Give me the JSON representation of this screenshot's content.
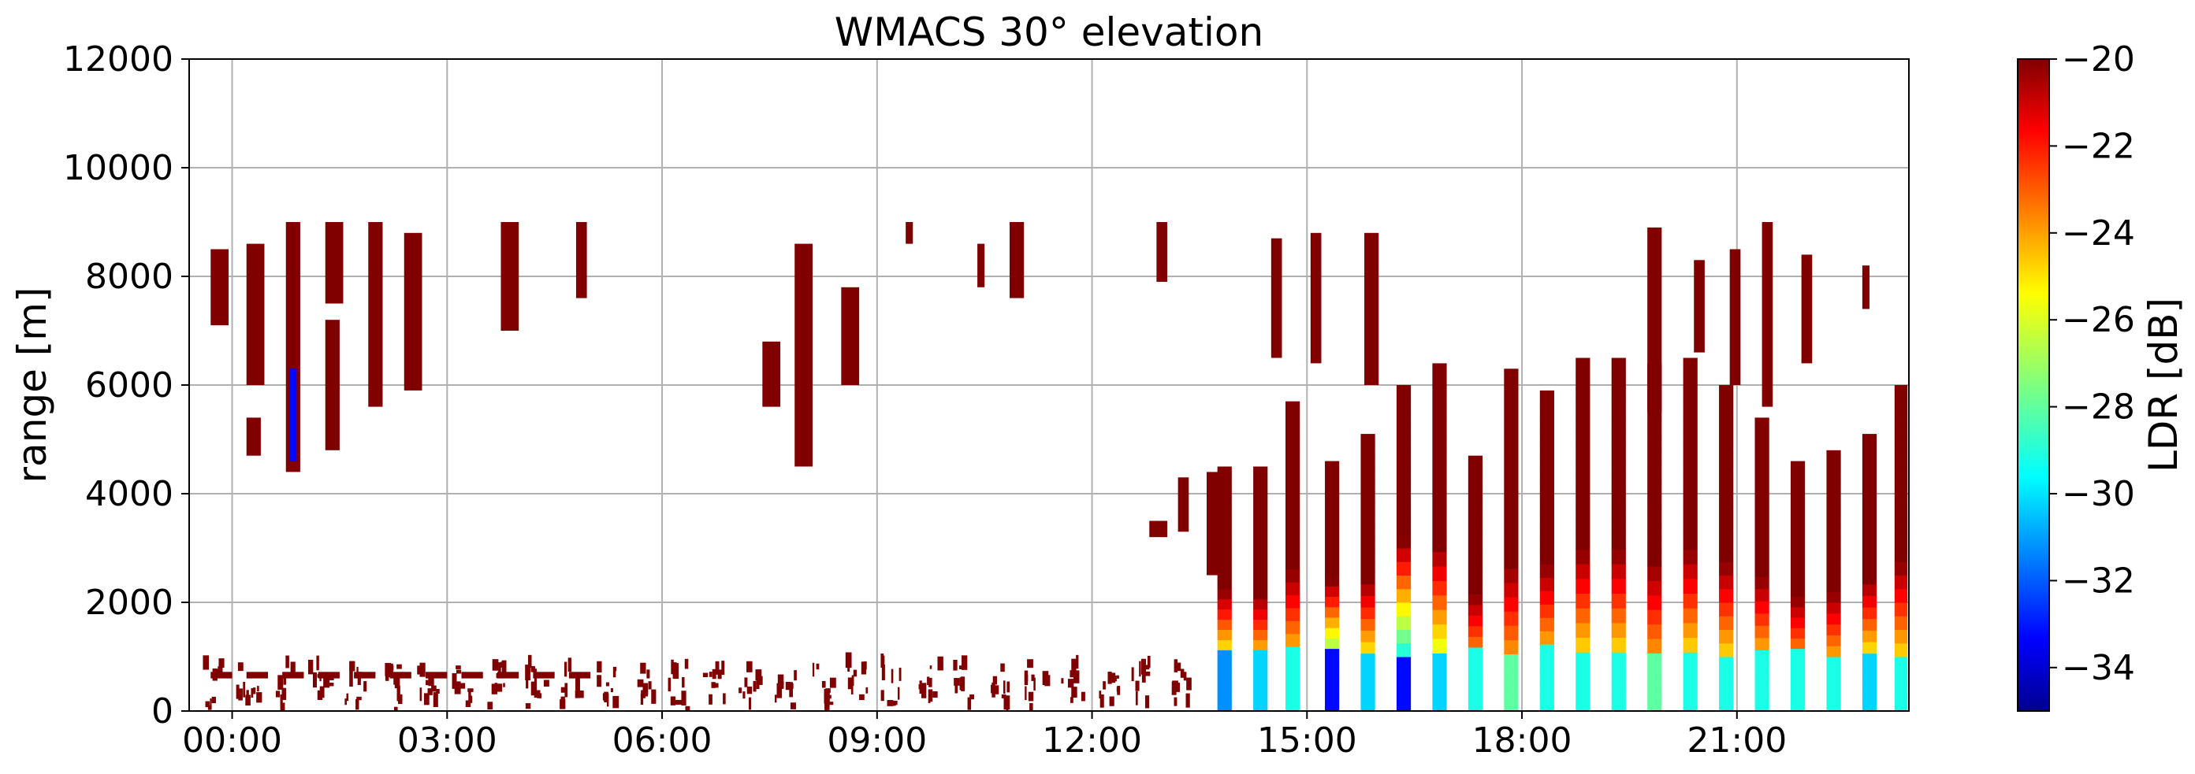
{
  "chart_data": {
    "type": "heatmap",
    "title": "WMACS 30° elevation",
    "xlabel": "",
    "ylabel": "range [m]",
    "xlim_hours": [
      -0.6,
      23.4
    ],
    "ylim": [
      0,
      12000
    ],
    "x_ticks": [
      {
        "hour": 0,
        "label": "00:00"
      },
      {
        "hour": 3,
        "label": "03:00"
      },
      {
        "hour": 6,
        "label": "06:00"
      },
      {
        "hour": 9,
        "label": "09:00"
      },
      {
        "hour": 12,
        "label": "12:00"
      },
      {
        "hour": 15,
        "label": "15:00"
      },
      {
        "hour": 18,
        "label": "18:00"
      },
      {
        "hour": 21,
        "label": "21:00"
      }
    ],
    "y_ticks": [
      {
        "value": 0,
        "label": "0"
      },
      {
        "value": 2000,
        "label": "2000"
      },
      {
        "value": 4000,
        "label": "4000"
      },
      {
        "value": 6000,
        "label": "6000"
      },
      {
        "value": 8000,
        "label": "8000"
      },
      {
        "value": 10000,
        "label": "10000"
      },
      {
        "value": 12000,
        "label": "12000"
      }
    ],
    "grid": true,
    "colorbar": {
      "label": "LDR [dB]",
      "colormap": "jet",
      "range": [
        -35,
        -20
      ],
      "ticks": [
        {
          "value": -20,
          "label": "−20"
        },
        {
          "value": -22,
          "label": "−22"
        },
        {
          "value": -24,
          "label": "−24"
        },
        {
          "value": -26,
          "label": "−26"
        },
        {
          "value": -28,
          "label": "−28"
        },
        {
          "value": -30,
          "label": "−30"
        },
        {
          "value": -32,
          "label": "−32"
        },
        {
          "value": -34,
          "label": "−34"
        }
      ]
    },
    "echoes": [
      {
        "t0": -0.3,
        "t1": -0.05,
        "r0": 7100,
        "r1": 8500,
        "ldr": -20
      },
      {
        "t0": 0.2,
        "t1": 0.45,
        "r0": 6000,
        "r1": 8600,
        "ldr": -20
      },
      {
        "t0": 0.2,
        "t1": 0.4,
        "r0": 4700,
        "r1": 5400,
        "ldr": -20
      },
      {
        "t0": 0.75,
        "t1": 0.95,
        "r0": 4400,
        "r1": 9000,
        "ldr": -20
      },
      {
        "t0": 0.8,
        "t1": 0.9,
        "r0": 4600,
        "r1": 6300,
        "ldr": -33
      },
      {
        "t0": 1.3,
        "t1": 1.55,
        "r0": 7500,
        "r1": 9000,
        "ldr": -20
      },
      {
        "t0": 1.3,
        "t1": 1.5,
        "r0": 4800,
        "r1": 7200,
        "ldr": -20
      },
      {
        "t0": 1.9,
        "t1": 2.1,
        "r0": 5600,
        "r1": 9000,
        "ldr": -20
      },
      {
        "t0": 2.4,
        "t1": 2.65,
        "r0": 5900,
        "r1": 8800,
        "ldr": -20
      },
      {
        "t0": 3.75,
        "t1": 4.0,
        "r0": 7000,
        "r1": 9000,
        "ldr": -20
      },
      {
        "t0": 4.8,
        "t1": 4.95,
        "r0": 7600,
        "r1": 9000,
        "ldr": -20
      },
      {
        "t0": 7.4,
        "t1": 7.65,
        "r0": 5600,
        "r1": 6800,
        "ldr": -20
      },
      {
        "t0": 7.85,
        "t1": 8.1,
        "r0": 4500,
        "r1": 8600,
        "ldr": -20
      },
      {
        "t0": 8.5,
        "t1": 8.75,
        "r0": 6000,
        "r1": 7800,
        "ldr": -20
      },
      {
        "t0": 9.4,
        "t1": 9.5,
        "r0": 8600,
        "r1": 9000,
        "ldr": -20
      },
      {
        "t0": 10.4,
        "t1": 10.5,
        "r0": 7800,
        "r1": 8600,
        "ldr": -20
      },
      {
        "t0": 10.85,
        "t1": 11.05,
        "r0": 7600,
        "r1": 9000,
        "ldr": -20
      },
      {
        "t0": 12.8,
        "t1": 13.05,
        "r0": 3200,
        "r1": 3500,
        "ldr": -20
      },
      {
        "t0": 13.2,
        "t1": 13.35,
        "r0": 3300,
        "r1": 4300,
        "ldr": -20
      },
      {
        "t0": 12.9,
        "t1": 13.05,
        "r0": 7900,
        "r1": 9000,
        "ldr": -20
      },
      {
        "t0": 13.6,
        "t1": 13.9,
        "r0": 2500,
        "r1": 4400,
        "ldr": -20
      },
      {
        "t0": 15.8,
        "t1": 16.0,
        "r0": 6000,
        "r1": 8800,
        "ldr": -20
      },
      {
        "t0": 15.05,
        "t1": 15.2,
        "r0": 6400,
        "r1": 8800,
        "ldr": -20
      },
      {
        "t0": 14.5,
        "t1": 14.65,
        "r0": 6500,
        "r1": 8700,
        "ldr": -20
      },
      {
        "t0": 19.75,
        "t1": 19.95,
        "r0": 5500,
        "r1": 8900,
        "ldr": -20
      },
      {
        "t0": 20.9,
        "t1": 21.05,
        "r0": 6000,
        "r1": 8500,
        "ldr": -20
      },
      {
        "t0": 21.35,
        "t1": 21.5,
        "r0": 5600,
        "r1": 9000,
        "ldr": -20
      },
      {
        "t0": 21.9,
        "t1": 22.05,
        "r0": 6400,
        "r1": 8400,
        "ldr": -20
      },
      {
        "t0": 20.4,
        "t1": 20.55,
        "r0": 6600,
        "r1": 8300,
        "ldr": -20
      },
      {
        "t0": 22.75,
        "t1": 22.85,
        "r0": 7400,
        "r1": 8200,
        "ldr": -20
      }
    ],
    "profiles": [
      {
        "t0": 13.75,
        "t1": 13.95,
        "top": 4500,
        "low_ldr": -31
      },
      {
        "t0": 14.25,
        "t1": 14.45,
        "top": 4500,
        "low_ldr": -30
      },
      {
        "t0": 14.7,
        "t1": 14.9,
        "top": 5700,
        "low_ldr": -29
      },
      {
        "t0": 15.25,
        "t1": 15.45,
        "top": 4600,
        "low_ldr": -33
      },
      {
        "t0": 15.75,
        "t1": 15.95,
        "top": 5100,
        "low_ldr": -30
      },
      {
        "t0": 16.25,
        "t1": 16.45,
        "top": 6000,
        "low_ldr": -33
      },
      {
        "t0": 16.75,
        "t1": 16.95,
        "top": 6400,
        "low_ldr": -30
      },
      {
        "t0": 17.25,
        "t1": 17.45,
        "top": 4700,
        "low_ldr": -29
      },
      {
        "t0": 17.75,
        "t1": 17.95,
        "top": 6300,
        "low_ldr": -28
      },
      {
        "t0": 18.25,
        "t1": 18.45,
        "top": 5900,
        "low_ldr": -29
      },
      {
        "t0": 18.75,
        "t1": 18.95,
        "top": 6500,
        "low_ldr": -29
      },
      {
        "t0": 19.25,
        "t1": 19.45,
        "top": 6500,
        "low_ldr": -29
      },
      {
        "t0": 19.75,
        "t1": 19.95,
        "top": 6400,
        "low_ldr": -28
      },
      {
        "t0": 20.25,
        "t1": 20.45,
        "top": 6500,
        "low_ldr": -29
      },
      {
        "t0": 20.75,
        "t1": 20.95,
        "top": 6000,
        "low_ldr": -29
      },
      {
        "t0": 21.25,
        "t1": 21.45,
        "top": 5400,
        "low_ldr": -29
      },
      {
        "t0": 21.75,
        "t1": 21.95,
        "top": 4600,
        "low_ldr": -29
      },
      {
        "t0": 22.25,
        "t1": 22.45,
        "top": 4800,
        "low_ldr": -29
      },
      {
        "t0": 22.75,
        "t1": 22.95,
        "top": 5100,
        "low_ldr": -30
      },
      {
        "t0": 23.2,
        "t1": 23.38,
        "top": 6000,
        "low_ldr": -29
      }
    ],
    "low_layer": {
      "t0": -0.45,
      "t1": 13.5,
      "r0": 0,
      "r1": 800,
      "ldr": -20
    },
    "low_layer_band": {
      "t0": -0.3,
      "t1": 4.9,
      "r0": 600,
      "r1": 720,
      "ldr": -20
    }
  }
}
